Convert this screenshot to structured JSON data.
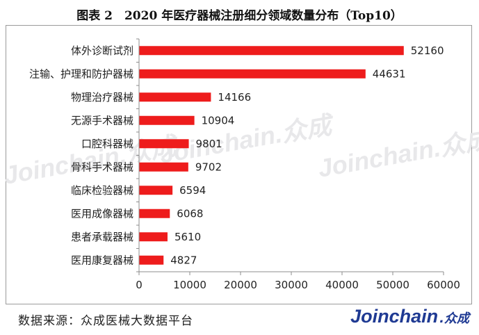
{
  "title": "图表 2　2020 年医疗器械注册细分领域数量分布（Top10）",
  "source": "数据来源：众成医械大数据平台",
  "brand": {
    "latin": "Joinchain",
    "cjk": ".众成"
  },
  "watermark": "Joinchain.众成",
  "colors": {
    "bar": "#ee1c1c",
    "axis": "#8c8c8c",
    "text": "#222222",
    "logo": "#1f3a93"
  },
  "chart_data": {
    "type": "bar",
    "orientation": "horizontal",
    "categories": [
      "体外诊断试剂",
      "注输、护理和防护器械",
      "物理治疗器械",
      "无源手术器械",
      "口腔科器械",
      "骨科手术器械",
      "临床检验器械",
      "医用成像器械",
      "患者承载器械",
      "医用康复器械"
    ],
    "values": [
      52160,
      44631,
      14166,
      10904,
      9801,
      9702,
      6594,
      6068,
      5610,
      4827
    ],
    "xlim": [
      0,
      60000
    ],
    "xticks": [
      0,
      10000,
      20000,
      30000,
      40000,
      50000,
      60000
    ],
    "grid": false,
    "data_labels": true
  }
}
